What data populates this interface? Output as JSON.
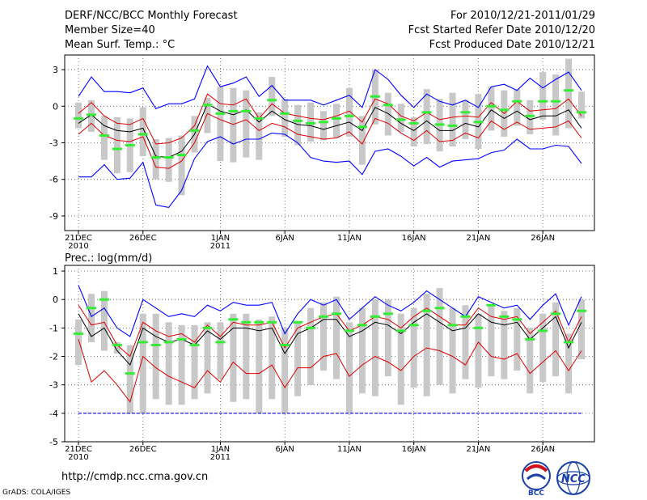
{
  "header": {
    "title": "DERF/NCC/BCC Monthly Forecast",
    "member_size": "Member Size=40",
    "variable": "Mean Surf. Temp.: °C",
    "for_range": "For 2010/12/21-2011/01/29",
    "started": "Fcst Started Refer Date 2010/12/20",
    "produced": "Fcst Produced Date 2010/12/21"
  },
  "footer": {
    "url": "http://cmdp.ncc.cma.gov.cn",
    "grads": "GrADS: COLA/IGES"
  },
  "logos": {
    "bcc": "BCC",
    "ncc": "NCC"
  },
  "x_axis": {
    "ticks": [
      {
        "day": 0,
        "label": "21DEC",
        "sub": "2010"
      },
      {
        "day": 5,
        "label": "26DEC",
        "sub": ""
      },
      {
        "day": 11,
        "label": "1JAN",
        "sub": "2011"
      },
      {
        "day": 16,
        "label": "6JAN",
        "sub": ""
      },
      {
        "day": 21,
        "label": "11JAN",
        "sub": ""
      },
      {
        "day": 26,
        "label": "16JAN",
        "sub": ""
      },
      {
        "day": 31,
        "label": "21JAN",
        "sub": ""
      },
      {
        "day": 36,
        "label": "26JAN",
        "sub": ""
      }
    ]
  },
  "colors": {
    "max": "#0000ff",
    "min": "#0000ff",
    "band": "#dd0000",
    "mean": "#000000",
    "obs": "#33ee33",
    "bar": "#c8c8c8",
    "grid": "#555555"
  },
  "chart_data": [
    {
      "type": "line",
      "title": "Mean Surf. Temp.: °C",
      "ylim": [
        -10.2,
        4.2
      ],
      "yticks": [
        3,
        0,
        -3,
        -6,
        -9
      ],
      "x": [
        0,
        1,
        2,
        3,
        4,
        5,
        6,
        7,
        8,
        9,
        10,
        11,
        12,
        13,
        14,
        15,
        16,
        17,
        18,
        19,
        20,
        21,
        22,
        23,
        24,
        25,
        26,
        27,
        28,
        29,
        30,
        31,
        32,
        33,
        34,
        35,
        36,
        37,
        38,
        39
      ],
      "series": [
        {
          "name": "max",
          "values": [
            0.8,
            2.4,
            1.2,
            1.2,
            1.1,
            1.5,
            -0.2,
            0.2,
            0.2,
            0.6,
            3.3,
            1.6,
            1.9,
            2.4,
            0.8,
            1.7,
            0.5,
            0.5,
            0.5,
            0.1,
            0.5,
            0.9,
            -0.1,
            3.0,
            2.2,
            0.9,
            -0.1,
            1.0,
            0.4,
            0.1,
            0.5,
            -0.1,
            1.6,
            1.8,
            1.3,
            2.3,
            1.5,
            2.2,
            2.8,
            1.3
          ]
        },
        {
          "name": "upper",
          "values": [
            -0.6,
            0.3,
            -0.8,
            -1.4,
            -1.5,
            -1.0,
            -3.1,
            -3.0,
            -2.6,
            -1.6,
            1.0,
            0.2,
            0.1,
            0.6,
            -1.0,
            0.2,
            -0.6,
            -0.8,
            -1.0,
            -1.1,
            -0.8,
            -0.4,
            -1.3,
            0.6,
            0.2,
            -0.8,
            -1.2,
            -0.5,
            -1.1,
            -0.9,
            -0.8,
            -0.9,
            0.3,
            -0.6,
            0.4,
            -0.4,
            -0.3,
            -0.2,
            0.6,
            -0.8
          ]
        },
        {
          "name": "mean",
          "values": [
            -1.4,
            -0.7,
            -1.6,
            -2.0,
            -2.1,
            -1.8,
            -4.1,
            -4.2,
            -3.7,
            -2.3,
            0.2,
            -0.4,
            -0.7,
            -0.3,
            -1.3,
            -0.4,
            -1.1,
            -1.5,
            -1.6,
            -1.9,
            -1.6,
            -1.3,
            -2.0,
            -0.1,
            -0.6,
            -1.4,
            -2.0,
            -1.2,
            -2.0,
            -2.0,
            -1.4,
            -1.7,
            -0.3,
            -1.0,
            -0.4,
            -1.1,
            -0.8,
            -0.8,
            -0.3,
            -1.8
          ]
        },
        {
          "name": "lower",
          "values": [
            -2.3,
            -1.4,
            -2.4,
            -2.8,
            -2.9,
            -2.5,
            -5.0,
            -5.1,
            -4.5,
            -3.0,
            -0.6,
            -1.1,
            -1.5,
            -1.1,
            -2.0,
            -1.4,
            -1.7,
            -2.3,
            -2.5,
            -2.7,
            -2.6,
            -2.1,
            -3.1,
            -1.0,
            -1.4,
            -2.2,
            -2.8,
            -2.0,
            -2.9,
            -2.8,
            -2.2,
            -2.6,
            -1.2,
            -1.9,
            -1.3,
            -1.9,
            -1.8,
            -1.7,
            -1.2,
            -2.6
          ]
        },
        {
          "name": "min",
          "values": [
            -5.8,
            -5.8,
            -4.8,
            -6.0,
            -5.9,
            -4.6,
            -8.1,
            -8.3,
            -6.9,
            -4.3,
            -2.9,
            -2.5,
            -3.1,
            -2.7,
            -2.7,
            -2.2,
            -2.3,
            -3.0,
            -4.2,
            -4.5,
            -4.6,
            -4.5,
            -5.6,
            -3.7,
            -3.5,
            -4.1,
            -4.9,
            -4.2,
            -5.0,
            -4.5,
            -4.4,
            -4.3,
            -3.8,
            -3.6,
            -2.7,
            -3.5,
            -3.5,
            -3.2,
            -3.3,
            -4.7
          ]
        },
        {
          "name": "obs",
          "values": [
            -1.0,
            -0.7,
            -2.4,
            -3.5,
            -3.2,
            -2.3,
            -4.2,
            -4.2,
            -4.0,
            -2.0,
            0.1,
            -0.6,
            -0.4,
            -0.4,
            -1.0,
            0.5,
            -0.6,
            -1.2,
            -1.4,
            -1.3,
            -1.0,
            -0.8,
            -1.7,
            0.8,
            0.1,
            -1.1,
            -1.4,
            -0.5,
            -1.5,
            -1.6,
            -0.5,
            -1.3,
            0.0,
            -0.3,
            0.4,
            -0.8,
            0.4,
            0.4,
            1.3,
            -0.5
          ]
        }
      ],
      "bars": [
        [
          -1.8,
          0.3
        ],
        [
          -2.1,
          0.5
        ],
        [
          -4.4,
          -0.8
        ],
        [
          -5.5,
          -0.9
        ],
        [
          -5.4,
          -1.0
        ],
        [
          -4.1,
          -0.1
        ],
        [
          -6.0,
          -2.7
        ],
        [
          -6.2,
          -2.6
        ],
        [
          -7.3,
          -2.4
        ],
        [
          -3.8,
          -0.8
        ],
        [
          -2.2,
          0.7
        ],
        [
          -4.5,
          1.6
        ],
        [
          -4.6,
          1.5
        ],
        [
          -4.2,
          1.3
        ],
        [
          -4.4,
          -0.5
        ],
        [
          -0.8,
          2.4
        ],
        [
          -2.5,
          0.6
        ],
        [
          -3.2,
          0.1
        ],
        [
          -2.9,
          0.3
        ],
        [
          -2.8,
          -0.4
        ],
        [
          -2.6,
          0.2
        ],
        [
          -2.5,
          1.5
        ],
        [
          -4.8,
          -0.8
        ],
        [
          -1.5,
          3.0
        ],
        [
          -2.4,
          1.1
        ],
        [
          -2.1,
          0.2
        ],
        [
          -3.3,
          -0.9
        ],
        [
          -3.1,
          1.4
        ],
        [
          -3.7,
          0.6
        ],
        [
          -3.3,
          1.1
        ],
        [
          -2.7,
          0.5
        ],
        [
          -3.5,
          1.0
        ],
        [
          -2.0,
          1.6
        ],
        [
          -2.5,
          1.3
        ],
        [
          -1.6,
          1.4
        ],
        [
          -2.3,
          0.5
        ],
        [
          -1.1,
          2.8
        ],
        [
          -2.4,
          2.6
        ],
        [
          -1.8,
          3.9
        ],
        [
          -1.0,
          1.2
        ]
      ]
    },
    {
      "type": "line",
      "title": "Prec.: log(mm/d)",
      "ylim": [
        -5,
        1.2
      ],
      "yticks": [
        1,
        0,
        -1,
        -2,
        -3,
        -4,
        -5
      ],
      "x": [
        0,
        1,
        2,
        3,
        4,
        5,
        6,
        7,
        8,
        9,
        10,
        11,
        12,
        13,
        14,
        15,
        16,
        17,
        18,
        19,
        20,
        21,
        22,
        23,
        24,
        25,
        26,
        27,
        28,
        29,
        30,
        31,
        32,
        33,
        34,
        35,
        36,
        37,
        38,
        39
      ],
      "series": [
        {
          "name": "max",
          "values": [
            0.5,
            -0.6,
            -0.3,
            -1.0,
            -1.3,
            0.0,
            -0.3,
            -0.6,
            -0.5,
            -0.6,
            -0.2,
            -0.4,
            -0.1,
            -0.2,
            -0.2,
            -0.1,
            -1.2,
            -0.5,
            0.0,
            -0.2,
            0.0,
            -0.7,
            -0.3,
            0.1,
            -0.2,
            -0.4,
            -0.1,
            0.3,
            0.0,
            -0.3,
            -0.6,
            0.1,
            -0.1,
            -0.3,
            -0.2,
            -0.7,
            -0.2,
            0.2,
            -0.9,
            0.1
          ]
        },
        {
          "name": "upper",
          "values": [
            -0.2,
            -0.9,
            -0.8,
            -1.6,
            -2.0,
            -0.8,
            -1.1,
            -1.3,
            -1.2,
            -1.5,
            -0.9,
            -1.3,
            -0.8,
            -0.9,
            -0.9,
            -0.8,
            -1.7,
            -1.0,
            -0.8,
            -0.6,
            -0.5,
            -1.1,
            -0.9,
            -0.6,
            -0.7,
            -1.0,
            -0.6,
            -0.3,
            -0.6,
            -0.9,
            -0.9,
            -0.3,
            -0.6,
            -0.7,
            -0.6,
            -1.2,
            -0.8,
            -0.4,
            -1.5,
            -0.6
          ]
        },
        {
          "name": "mean",
          "values": [
            -0.5,
            -1.3,
            -1.0,
            -1.8,
            -2.3,
            -1.0,
            -1.3,
            -1.5,
            -1.4,
            -1.6,
            -1.1,
            -1.4,
            -1.0,
            -1.0,
            -1.1,
            -1.0,
            -1.9,
            -1.2,
            -1.0,
            -0.7,
            -0.7,
            -1.3,
            -1.1,
            -0.8,
            -0.9,
            -1.2,
            -0.8,
            -0.5,
            -0.8,
            -1.1,
            -1.0,
            -0.5,
            -0.8,
            -0.9,
            -0.8,
            -1.4,
            -1.0,
            -0.6,
            -1.7,
            -0.8
          ]
        },
        {
          "name": "lower",
          "values": [
            -1.4,
            -2.9,
            -2.5,
            -3.0,
            -3.6,
            -2.0,
            -2.4,
            -2.7,
            -2.9,
            -3.1,
            -2.5,
            -2.9,
            -2.2,
            -2.6,
            -2.6,
            -2.3,
            -3.1,
            -2.4,
            -2.4,
            -2.0,
            -1.9,
            -2.7,
            -2.3,
            -2.0,
            -2.2,
            -2.5,
            -2.0,
            -1.7,
            -1.8,
            -2.0,
            -2.3,
            -1.5,
            -2.0,
            -2.1,
            -1.9,
            -2.6,
            -2.2,
            -1.8,
            -2.5,
            -1.8
          ]
        },
        {
          "name": "min",
          "values": [
            -4,
            -4,
            -4,
            -4,
            -4,
            -4,
            -4,
            -4,
            -4,
            -4,
            -4,
            -4,
            -4,
            -4,
            -4,
            -4,
            -4,
            -4,
            -4,
            -4,
            -4,
            -4,
            -4,
            -4,
            -4,
            -4,
            -4,
            -4,
            -4,
            -4,
            -4,
            -4,
            -4,
            -4,
            -4,
            -4,
            -4,
            -4,
            -4,
            -4
          ]
        },
        {
          "name": "obs",
          "values": [
            -1.2,
            -0.3,
            0.0,
            -1.6,
            -2.6,
            -1.5,
            -1.6,
            -1.5,
            -1.4,
            -1.6,
            -1.0,
            -1.5,
            -0.7,
            -0.8,
            -0.8,
            -0.8,
            -1.6,
            -0.8,
            -1.0,
            -0.6,
            -0.5,
            -1.1,
            -0.9,
            -0.6,
            -0.5,
            -1.1,
            -0.9,
            -0.4,
            -0.3,
            -0.9,
            -0.6,
            -1.0,
            -0.2,
            -0.6,
            -0.7,
            -1.4,
            -1.1,
            -0.5,
            -1.5,
            -0.4
          ]
        }
      ],
      "bars": [
        [
          -2.3,
          -0.7
        ],
        [
          -1.5,
          0.2
        ],
        [
          -1.8,
          0.3
        ],
        [
          -1.9,
          -1.5
        ],
        [
          -4.0,
          -1.6
        ],
        [
          -4.0,
          -0.5
        ],
        [
          -3.5,
          -0.5
        ],
        [
          -3.7,
          -0.8
        ],
        [
          -3.7,
          -0.9
        ],
        [
          -3.5,
          -0.9
        ],
        [
          -3.3,
          -0.8
        ],
        [
          -2.8,
          -0.8
        ],
        [
          -3.6,
          -0.5
        ],
        [
          -3.5,
          -0.5
        ],
        [
          -4.0,
          -0.7
        ],
        [
          -3.5,
          -0.6
        ],
        [
          -4.0,
          -1.0
        ],
        [
          -3.4,
          -0.8
        ],
        [
          -3.0,
          -0.3
        ],
        [
          -2.5,
          -0.1
        ],
        [
          -2.8,
          0.1
        ],
        [
          -4.0,
          -0.8
        ],
        [
          -3.3,
          -0.3
        ],
        [
          -3.4,
          0.0
        ],
        [
          -2.7,
          0.0
        ],
        [
          -3.7,
          -0.5
        ],
        [
          -3.1,
          -0.3
        ],
        [
          -3.4,
          0.2
        ],
        [
          -3.0,
          0.4
        ],
        [
          -3.3,
          -0.3
        ],
        [
          -2.8,
          -0.2
        ],
        [
          -3.1,
          -0.5
        ],
        [
          -2.7,
          -0.2
        ],
        [
          -2.8,
          -0.4
        ],
        [
          -2.5,
          -0.3
        ],
        [
          -3.3,
          -1.0
        ],
        [
          -2.9,
          -0.5
        ],
        [
          -2.7,
          -0.1
        ],
        [
          -3.3,
          -1.2
        ],
        [
          -2.1,
          0.0
        ]
      ]
    }
  ]
}
